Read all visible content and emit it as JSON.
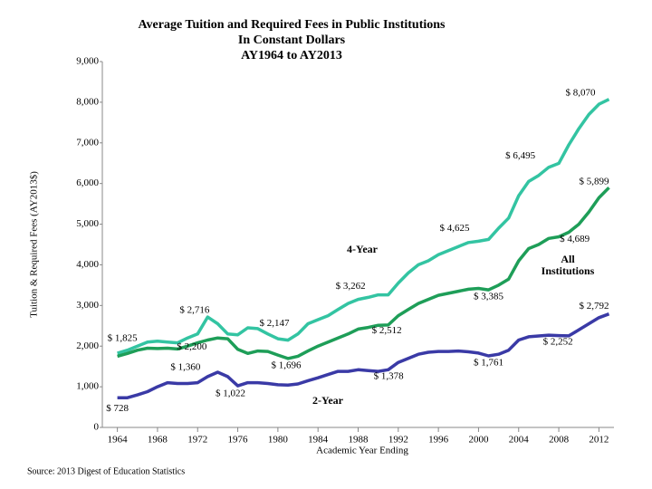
{
  "chart_data": {
    "type": "line",
    "title": "Average Tuition and Required Fees in Public Institutions",
    "subtitle": [
      "In Constant Dollars",
      "AY1964 to AY2013"
    ],
    "x_label": "Academic Year Ending",
    "y_label": "Tuition & Required Fees (AY2013$)",
    "source": "Source: 2013 Digest of Education Statistics",
    "x": [
      1964,
      1965,
      1966,
      1967,
      1968,
      1969,
      1970,
      1971,
      1972,
      1973,
      1974,
      1975,
      1976,
      1977,
      1978,
      1979,
      1980,
      1981,
      1982,
      1983,
      1984,
      1985,
      1986,
      1987,
      1988,
      1989,
      1990,
      1991,
      1992,
      1993,
      1994,
      1995,
      1996,
      1997,
      1998,
      1999,
      2000,
      2001,
      2002,
      2003,
      2004,
      2005,
      2006,
      2007,
      2008,
      2009,
      2010,
      2011,
      2012,
      2013
    ],
    "xlim": [
      1962.5,
      2013.5
    ],
    "xticks": [
      1964,
      1968,
      1972,
      1976,
      1980,
      1984,
      1988,
      1992,
      1996,
      2000,
      2004,
      2008,
      2012
    ],
    "ylim": [
      0,
      9000
    ],
    "yticks": [
      0,
      {
        "value": 1000,
        "label": "1,000"
      },
      {
        "value": 2000,
        "label": "2,000"
      },
      {
        "value": 3000,
        "label": "3,000"
      },
      {
        "value": 4000,
        "label": "4,000"
      },
      {
        "value": 5000,
        "label": "5,000"
      },
      {
        "value": 6000,
        "label": "6,000"
      },
      {
        "value": 7000,
        "label": "7,000"
      },
      {
        "value": 8000,
        "label": "8,000"
      },
      {
        "value": 9000,
        "label": "9,000"
      }
    ],
    "grid": false,
    "series": [
      {
        "name": "4-Year",
        "color": "#33c4a2",
        "values": [
          1825,
          1900,
          2000,
          2100,
          2120,
          2100,
          2080,
          2200,
          2300,
          2716,
          2550,
          2300,
          2280,
          2450,
          2430,
          2300,
          2180,
          2147,
          2300,
          2550,
          2650,
          2750,
          2900,
          3050,
          3150,
          3200,
          3262,
          3262,
          3550,
          3800,
          4000,
          4100,
          4250,
          4350,
          4450,
          4550,
          4580,
          4625,
          4900,
          5150,
          5700,
          6050,
          6200,
          6400,
          6495,
          6950,
          7350,
          7700,
          7950,
          8070
        ],
        "value_labels": [
          "$ 1,825",
          null,
          null,
          null,
          null,
          null,
          null,
          null,
          null,
          "$ 2,716",
          null,
          null,
          null,
          null,
          null,
          null,
          null,
          "$ 2,147",
          null,
          null,
          null,
          null,
          null,
          null,
          null,
          null,
          "$ 3,262",
          null,
          null,
          null,
          null,
          null,
          null,
          null,
          null,
          null,
          null,
          "$ 4,625",
          null,
          null,
          null,
          null,
          null,
          null,
          "$ 6,495",
          null,
          null,
          null,
          null,
          "$ 8,070"
        ]
      },
      {
        "name": "All Institutions",
        "color": "#1e9e58",
        "values": [
          1750,
          1820,
          1900,
          1950,
          1940,
          1950,
          1930,
          2000,
          2080,
          2150,
          2200,
          2180,
          1920,
          1820,
          1880,
          1870,
          1780,
          1696,
          1750,
          1880,
          2000,
          2100,
          2200,
          2300,
          2420,
          2460,
          2512,
          2520,
          2750,
          2900,
          3050,
          3150,
          3250,
          3300,
          3350,
          3400,
          3420,
          3385,
          3500,
          3650,
          4100,
          4400,
          4500,
          4650,
          4689,
          4800,
          5000,
          5300,
          5650,
          5899
        ],
        "value_labels": [
          null,
          null,
          null,
          null,
          null,
          null,
          null,
          null,
          null,
          null,
          "$ 2,200",
          null,
          null,
          null,
          null,
          null,
          null,
          "$ 1,696",
          null,
          null,
          null,
          null,
          null,
          null,
          null,
          null,
          "$ 2,512",
          null,
          null,
          null,
          null,
          null,
          null,
          null,
          null,
          null,
          null,
          "$ 3,385",
          null,
          null,
          null,
          null,
          null,
          null,
          "$ 4,689",
          null,
          null,
          null,
          null,
          "$ 5,899"
        ]
      },
      {
        "name": "2-Year",
        "color": "#3a3aa6",
        "values": [
          728,
          730,
          800,
          880,
          1000,
          1100,
          1080,
          1080,
          1100,
          1250,
          1360,
          1250,
          1022,
          1100,
          1100,
          1080,
          1050,
          1040,
          1070,
          1150,
          1220,
          1300,
          1380,
          1380,
          1420,
          1400,
          1378,
          1420,
          1600,
          1700,
          1800,
          1850,
          1870,
          1870,
          1880,
          1860,
          1830,
          1761,
          1800,
          1900,
          2150,
          2230,
          2250,
          2270,
          2260,
          2252,
          2400,
          2550,
          2700,
          2792
        ],
        "value_labels": [
          "$ 728",
          null,
          null,
          null,
          null,
          null,
          null,
          null,
          null,
          null,
          "$ 1,360",
          null,
          "$ 1,022",
          null,
          null,
          null,
          null,
          null,
          null,
          null,
          null,
          null,
          null,
          null,
          null,
          null,
          "$ 1,378",
          null,
          null,
          null,
          null,
          null,
          null,
          null,
          null,
          null,
          null,
          "$ 1,761",
          null,
          null,
          null,
          null,
          null,
          null,
          null,
          "$ 2,252",
          null,
          null,
          null,
          "$ 2,792"
        ]
      }
    ]
  }
}
